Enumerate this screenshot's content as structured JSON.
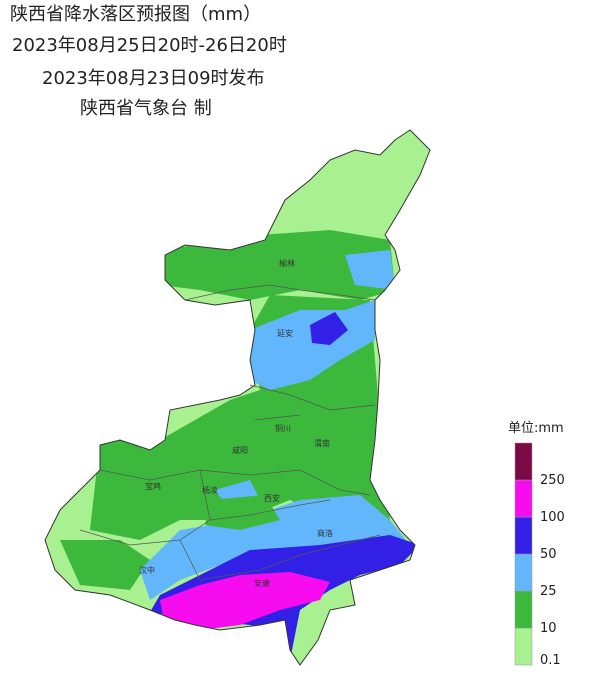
{
  "header": {
    "title": "陕西省降水落区预报图（mm）",
    "period": "2023年08月25日20时-26日20时",
    "issued": "2023年08月23日09时发布",
    "issuer": "陕西省气象台 制"
  },
  "cities": [
    "榆林",
    "延安",
    "铜川",
    "渭南",
    "咸阳",
    "宝鸡",
    "杨凌",
    "西安",
    "商洛",
    "汉中",
    "安康"
  ],
  "legend": {
    "title": "单位:mm",
    "ticks": [
      0.1,
      10,
      25,
      50,
      100,
      250
    ],
    "colors": [
      "#a8f090",
      "#3cb93c",
      "#62b6fc",
      "#3320e6",
      "#f70cf0",
      "#7a0b45"
    ]
  }
}
